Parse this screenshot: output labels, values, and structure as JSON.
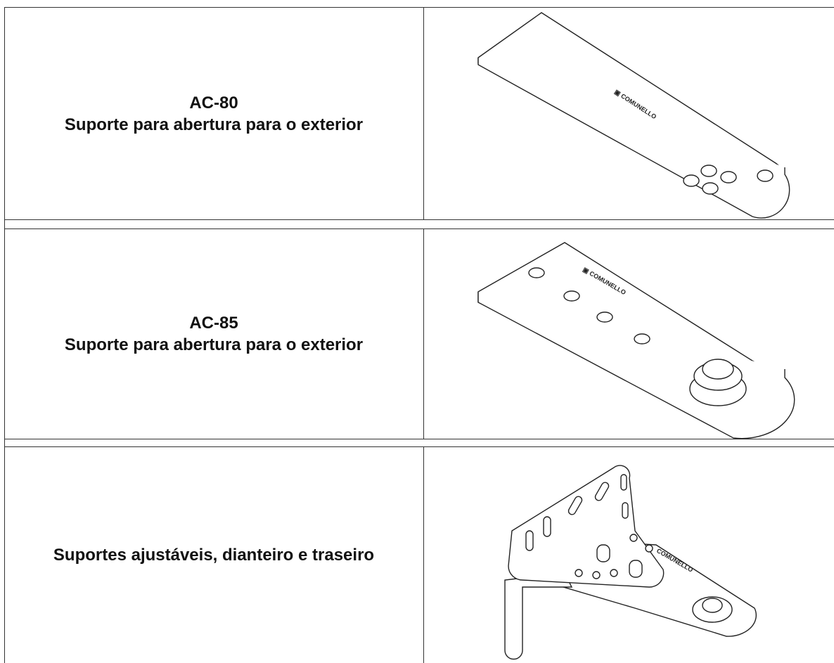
{
  "rows": [
    {
      "lines": [
        "AC-80",
        "Suporte para abertura para o exterior"
      ]
    },
    {
      "lines": [
        "AC-85",
        "Suporte para abertura para o exterior"
      ]
    },
    {
      "lines": [
        "Suportes ajustáveis, dianteiro e traseiro"
      ]
    }
  ]
}
